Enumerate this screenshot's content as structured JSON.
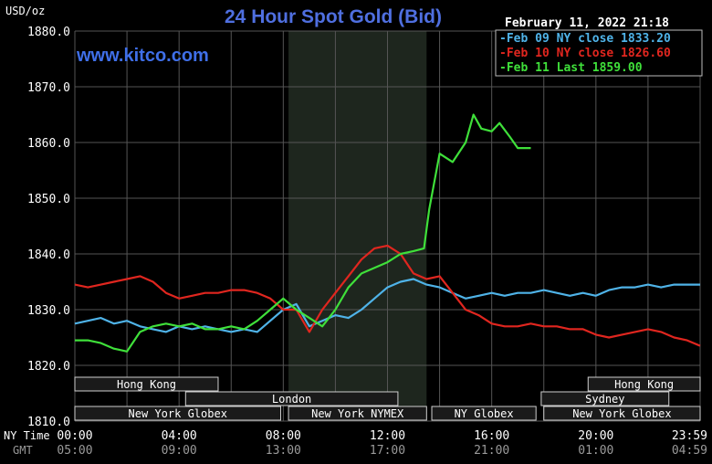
{
  "unit_label": "USD/oz",
  "title": "24 Hour Spot Gold (Bid)",
  "watermark": "www.kitco.com",
  "timestamp": "February 11, 2022 21:18",
  "legend": [
    {
      "label": "Feb 09 NY close 1833.20",
      "color": "#4fb3e8"
    },
    {
      "label": "Feb 10 NY close 1826.60",
      "color": "#e0261f"
    },
    {
      "label": "Feb 11 Last 1859.00",
      "color": "#3fe03a"
    }
  ],
  "axis_rows": {
    "ny_label": "NY Time",
    "gmt_label": "GMT"
  },
  "sessions": [
    {
      "label": "Hong Kong",
      "start": 0,
      "end": 5.5,
      "row": 0
    },
    {
      "label": "London",
      "start": 4.25,
      "end": 12.4,
      "row": 1
    },
    {
      "label": "New York Globex",
      "start": 0,
      "end": 7.9,
      "row": 2
    },
    {
      "label": "New York NYMEX",
      "start": 8.2,
      "end": 13.5,
      "row": 2
    },
    {
      "label": "NY Globex",
      "start": 13.7,
      "end": 17.7,
      "row": 2
    },
    {
      "label": "Hong Kong",
      "start": 19.7,
      "end": 24,
      "row": 0
    },
    {
      "label": "Sydney",
      "start": 17.9,
      "end": 22.8,
      "row": 1
    },
    {
      "label": "New York Globex",
      "start": 18.0,
      "end": 24,
      "row": 2
    }
  ],
  "colors": {
    "background": "#000000",
    "grid": "#555555",
    "nymex_shade": "#1e261e",
    "axis_text": "#ffffff",
    "gmt_text": "#9a9a9a",
    "title": "#4f6fe0",
    "watermark": "#3f6fe8",
    "session_box": "#1a1a1a",
    "session_text": "#ffffff"
  },
  "chart_data": {
    "type": "line",
    "title": "24 Hour Spot Gold (Bid)",
    "ylabel": "USD/oz",
    "ylim": [
      1810,
      1880
    ],
    "xlim": [
      0,
      24
    ],
    "grid": true,
    "legend_position": "top-right",
    "shaded_region": [
      8.2,
      13.5
    ],
    "y_ticks": [
      "1880.0",
      "1870.0",
      "1860.0",
      "1850.0",
      "1840.0",
      "1830.0",
      "1820.0",
      "1810.0"
    ],
    "x_ticks_ny": [
      "00:00",
      "04:00",
      "08:00",
      "12:00",
      "16:00",
      "20:00",
      "23:59"
    ],
    "x_ticks_gmt": [
      "05:00",
      "09:00",
      "13:00",
      "17:00",
      "21:00",
      "01:00",
      "04:59"
    ],
    "series": [
      {
        "name": "Feb 09 NY close 1833.20",
        "color": "#4fb3e8",
        "x": [
          0,
          0.5,
          1,
          1.5,
          2,
          2.5,
          3,
          3.5,
          4,
          4.5,
          5,
          5.5,
          6,
          6.5,
          7,
          7.5,
          8,
          8.5,
          9,
          9.5,
          10,
          10.5,
          11,
          11.5,
          12,
          12.5,
          13,
          13.5,
          14,
          14.5,
          15,
          15.5,
          16,
          16.5,
          17,
          17.5,
          18,
          18.5,
          19,
          19.5,
          20,
          20.5,
          21,
          21.5,
          22,
          22.5,
          23,
          23.5,
          24
        ],
        "y": [
          1827.5,
          1828.0,
          1828.5,
          1827.5,
          1828.0,
          1827.0,
          1826.5,
          1826.0,
          1827.0,
          1826.5,
          1827.0,
          1826.5,
          1826.0,
          1826.5,
          1826.0,
          1828.0,
          1830.0,
          1831.0,
          1827.0,
          1828.0,
          1829.0,
          1828.5,
          1830.0,
          1832.0,
          1834.0,
          1835.0,
          1835.5,
          1834.5,
          1834.0,
          1833.0,
          1832.0,
          1832.5,
          1833.0,
          1832.5,
          1833.0,
          1833.0,
          1833.5,
          1833.0,
          1832.5,
          1833.0,
          1832.5,
          1833.5,
          1834.0,
          1834.0,
          1834.5,
          1834.0,
          1834.5,
          1834.5,
          1834.5
        ]
      },
      {
        "name": "Feb 10 NY close 1826.60",
        "color": "#e0261f",
        "x": [
          0,
          0.5,
          1,
          1.5,
          2,
          2.5,
          3,
          3.5,
          4,
          4.5,
          5,
          5.5,
          6,
          6.5,
          7,
          7.5,
          8,
          8.5,
          9,
          9.5,
          10,
          10.5,
          11,
          11.5,
          12,
          12.5,
          13,
          13.5,
          14,
          14.5,
          15,
          15.5,
          16,
          16.5,
          17,
          17.5,
          18,
          18.5,
          19,
          19.5,
          20,
          20.5,
          21,
          21.5,
          22,
          22.5,
          23,
          23.5,
          24
        ],
        "y": [
          1834.5,
          1834.0,
          1834.5,
          1835.0,
          1835.5,
          1836.0,
          1835.0,
          1833.0,
          1832.0,
          1832.5,
          1833.0,
          1833.0,
          1833.5,
          1833.5,
          1833.0,
          1832.0,
          1830.0,
          1830.0,
          1826.0,
          1830.0,
          1833.0,
          1836.0,
          1839.0,
          1841.0,
          1841.5,
          1840.0,
          1836.5,
          1835.5,
          1836.0,
          1833.0,
          1830.0,
          1829.0,
          1827.5,
          1827.0,
          1827.0,
          1827.5,
          1827.0,
          1827.0,
          1826.5,
          1826.5,
          1825.5,
          1825.0,
          1825.5,
          1826.0,
          1826.5,
          1826.0,
          1825.0,
          1824.5,
          1823.5
        ]
      },
      {
        "name": "Feb 11 Last 1859.00",
        "color": "#3fe03a",
        "x": [
          0,
          0.5,
          1,
          1.5,
          2,
          2.5,
          3,
          3.5,
          4,
          4.5,
          5,
          5.5,
          6,
          6.5,
          7,
          7.5,
          8,
          8.5,
          9,
          9.5,
          10,
          10.5,
          11,
          11.5,
          12,
          12.5,
          13,
          13.4,
          13.6,
          14,
          14.5,
          15,
          15.3,
          15.6,
          16,
          16.3,
          16.7,
          17,
          17.5
        ],
        "y": [
          1824.5,
          1824.5,
          1824.0,
          1823.0,
          1822.5,
          1826.0,
          1827.0,
          1827.5,
          1827.0,
          1827.5,
          1826.5,
          1826.5,
          1827.0,
          1826.5,
          1828.0,
          1830.0,
          1832.0,
          1830.0,
          1828.5,
          1827.0,
          1830.0,
          1834.0,
          1836.5,
          1837.5,
          1838.5,
          1840.0,
          1840.5,
          1841.0,
          1848.0,
          1858.0,
          1856.5,
          1860.0,
          1865.0,
          1862.5,
          1862.0,
          1863.5,
          1861.0,
          1859.0,
          1859.0
        ]
      }
    ]
  }
}
